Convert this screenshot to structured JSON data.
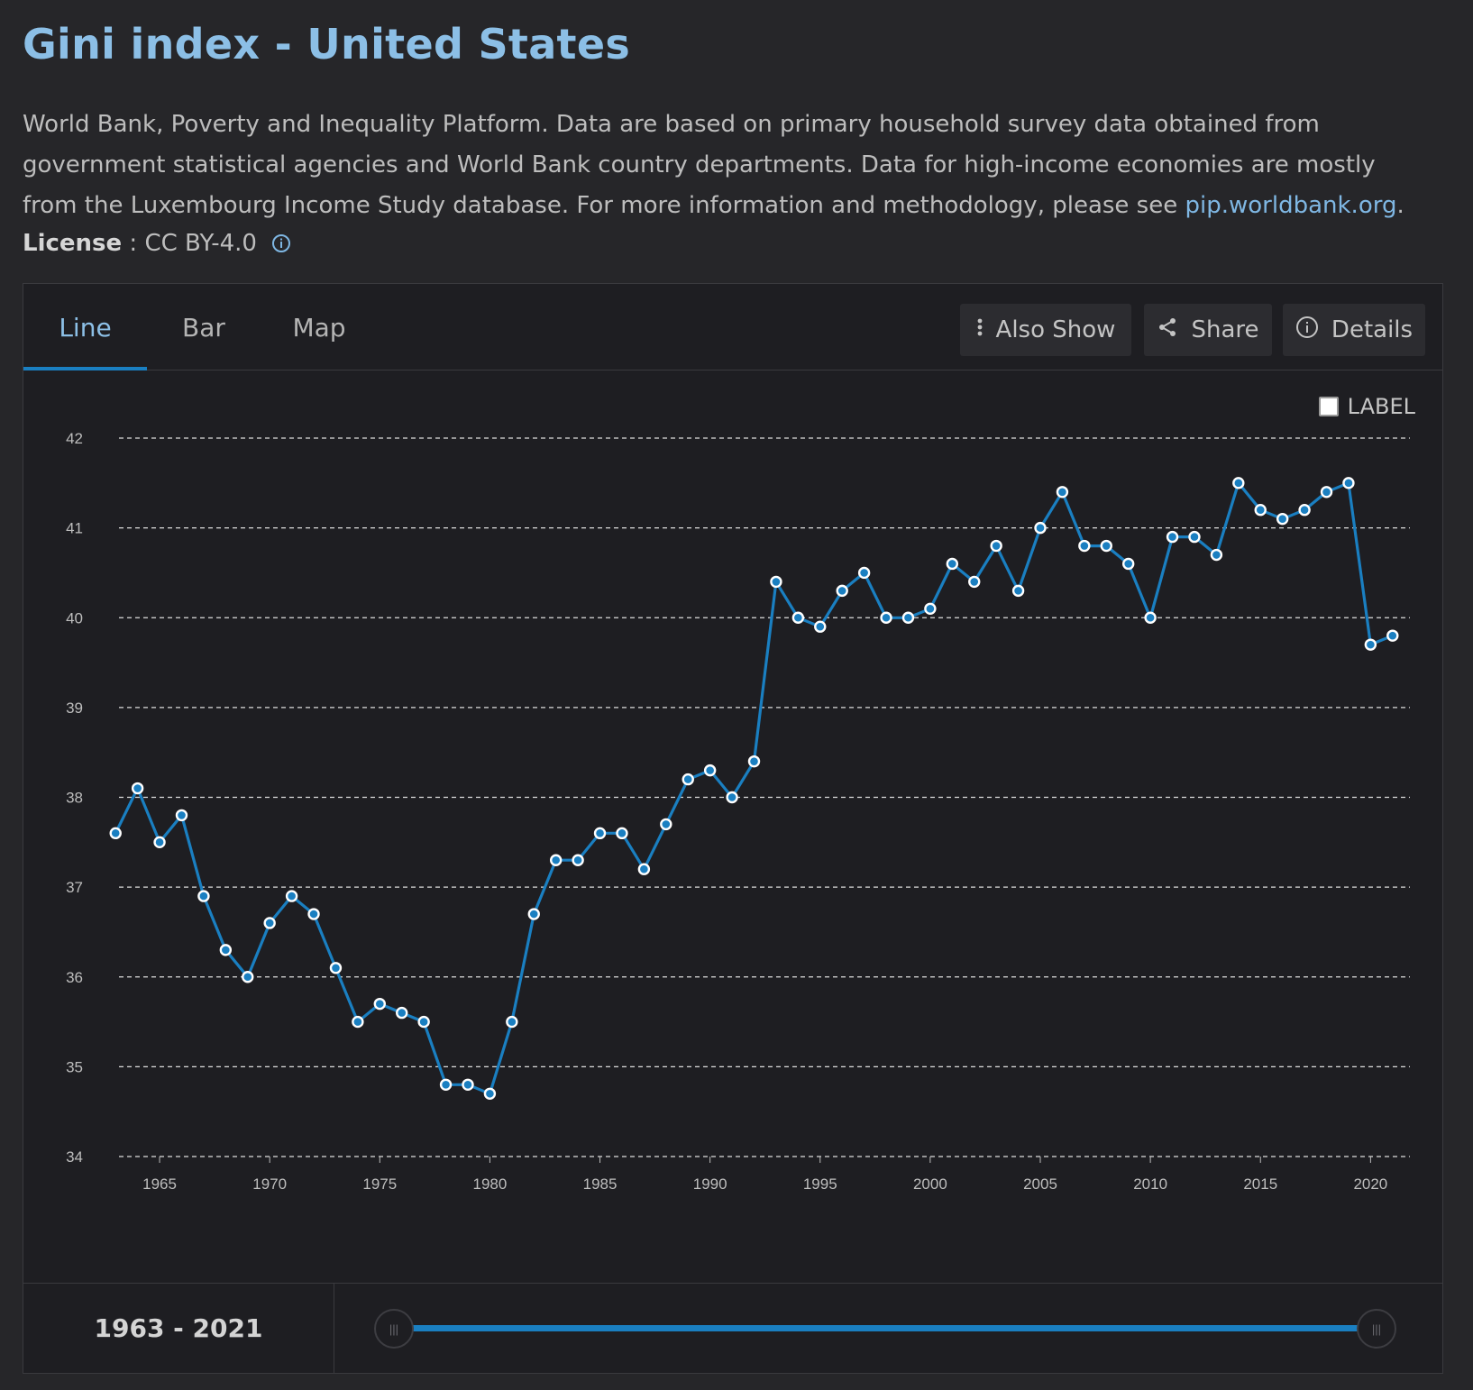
{
  "header": {
    "title": "Gini index - United States",
    "description": "World Bank, Poverty and Inequality Platform. Data are based on primary household survey data obtained from government statistical agencies and World Bank country departments. Data for high-income economies are mostly from the Luxembourg Income Study database. For more information and methodology, please see ",
    "link_text": "pip.worldbank.org",
    "description_end": ".",
    "license_label": "License",
    "license_sep": " : ",
    "license_value": "CC BY-4.0"
  },
  "tabs": [
    {
      "label": "Line",
      "active": true
    },
    {
      "label": "Bar",
      "active": false
    },
    {
      "label": "Map",
      "active": false
    }
  ],
  "toolbar": {
    "also_show": "Also Show",
    "share": "Share",
    "details": "Details"
  },
  "label_toggle": {
    "text": "LABEL",
    "checked": false
  },
  "range": {
    "text": "1963 - 2021",
    "start": 1963,
    "end": 2021
  },
  "colors": {
    "accent": "#1a7fc1",
    "title": "#8cbfe6",
    "line": "#1a7fc1",
    "grid": "#dddddd"
  },
  "chart_data": {
    "type": "line",
    "title": "",
    "xlabel": "",
    "ylabel": "",
    "ylim": [
      34,
      42
    ],
    "yticks": [
      34,
      35,
      36,
      37,
      38,
      39,
      40,
      41,
      42
    ],
    "xlim": [
      1963,
      2021
    ],
    "xticks": [
      1965,
      1970,
      1975,
      1980,
      1985,
      1990,
      1995,
      2000,
      2005,
      2010,
      2015,
      2020
    ],
    "grid": true,
    "x": [
      1963,
      1964,
      1965,
      1966,
      1967,
      1968,
      1969,
      1970,
      1971,
      1972,
      1973,
      1974,
      1975,
      1976,
      1977,
      1978,
      1979,
      1980,
      1981,
      1982,
      1983,
      1984,
      1985,
      1986,
      1987,
      1988,
      1989,
      1990,
      1991,
      1992,
      1993,
      1994,
      1995,
      1996,
      1997,
      1998,
      1999,
      2000,
      2001,
      2002,
      2003,
      2004,
      2005,
      2006,
      2007,
      2008,
      2009,
      2010,
      2011,
      2012,
      2013,
      2014,
      2015,
      2016,
      2017,
      2018,
      2019,
      2020,
      2021
    ],
    "values": [
      37.6,
      38.1,
      37.5,
      37.8,
      36.9,
      36.3,
      36.0,
      36.6,
      36.9,
      36.7,
      36.1,
      35.5,
      35.7,
      35.6,
      35.5,
      34.8,
      34.8,
      34.7,
      35.5,
      36.7,
      37.3,
      37.3,
      37.6,
      37.6,
      37.2,
      37.7,
      38.2,
      38.3,
      38.0,
      38.4,
      40.4,
      40.0,
      39.9,
      40.3,
      40.5,
      40.0,
      40.0,
      40.1,
      40.6,
      40.4,
      40.8,
      40.3,
      41.0,
      41.4,
      40.8,
      40.8,
      40.6,
      40.0,
      40.9,
      40.9,
      40.7,
      41.5,
      41.2,
      41.1,
      41.2,
      41.4,
      41.5,
      39.7,
      39.8
    ]
  }
}
